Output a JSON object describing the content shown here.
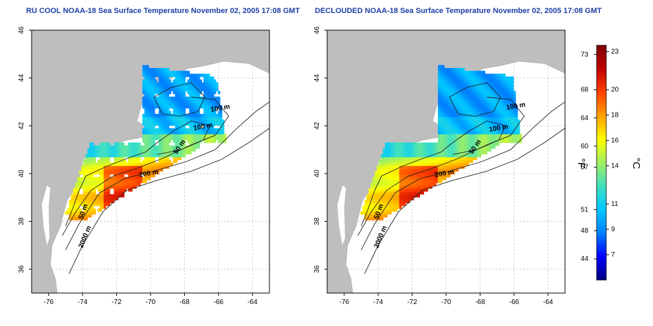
{
  "panels": [
    {
      "title": "RU COOL NOAA-18 Sea Surface Temperature November 02, 2005 17:08 GMT",
      "variant": "cloud-masked"
    },
    {
      "title": "DECLOUDED NOAA-18 Sea Surface Temperature November 02, 2005 17:08 GMT",
      "variant": "declouded"
    }
  ],
  "axes": {
    "x_ticks": [
      "-76",
      "-74",
      "-72",
      "-70",
      "-68",
      "-66",
      "-64"
    ],
    "y_ticks": [
      "46",
      "44",
      "42",
      "40",
      "38",
      "36"
    ],
    "xlim": [
      -77,
      -63
    ],
    "ylim": [
      35,
      46
    ]
  },
  "contour_labels": {
    "c100": "100 m",
    "c50": "50 m",
    "c200": "200 m",
    "c2000": "2000 m"
  },
  "colorbar": {
    "f_label": "°F",
    "c_label": "°C",
    "f_ticks": [
      "73",
      "68",
      "64",
      "60",
      "57",
      "51",
      "48",
      "44"
    ],
    "c_ticks": [
      "23",
      "20",
      "18",
      "16",
      "14",
      "11",
      "9",
      "7"
    ],
    "range_c": [
      5,
      23.5
    ],
    "colors": [
      "#000080",
      "#0000ff",
      "#0080ff",
      "#00c8ff",
      "#40e0c0",
      "#a0f060",
      "#ffff00",
      "#ffa000",
      "#ff4000",
      "#c00000",
      "#800000"
    ]
  },
  "map_colors": {
    "land": "#bebebe",
    "ocean": "#ffffff",
    "contour": "#222222",
    "grid": "#bbbbbb"
  }
}
